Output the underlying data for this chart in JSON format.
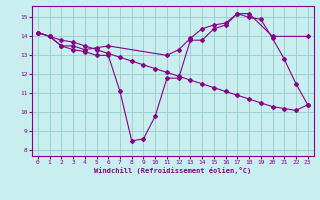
{
  "xlabel": "Windchill (Refroidissement éolien,°C)",
  "bg_color": "#c8eef0",
  "line_color": "#880088",
  "grid_color": "#99cccc",
  "xlim": [
    -0.5,
    23.5
  ],
  "ylim": [
    7.7,
    15.6
  ],
  "yticks": [
    8,
    9,
    10,
    11,
    12,
    13,
    14,
    15
  ],
  "xticks": [
    0,
    1,
    2,
    3,
    4,
    5,
    6,
    7,
    8,
    9,
    10,
    11,
    12,
    13,
    14,
    15,
    16,
    17,
    18,
    19,
    20,
    21,
    22,
    23
  ],
  "line1_x": [
    0,
    1,
    2,
    3,
    4,
    5,
    6,
    11,
    12,
    13,
    14,
    15,
    16,
    17,
    18,
    20,
    23
  ],
  "line1_y": [
    14.2,
    14.0,
    13.5,
    13.5,
    13.3,
    13.4,
    13.5,
    13.0,
    13.3,
    13.9,
    14.4,
    14.6,
    14.7,
    15.2,
    15.2,
    14.0,
    14.0
  ],
  "line2_x": [
    0,
    1,
    2,
    3,
    4,
    5,
    6,
    7,
    8,
    9,
    10,
    11,
    12,
    13,
    14,
    15,
    16,
    17,
    18,
    19,
    20,
    21,
    22,
    23
  ],
  "line2_y": [
    14.2,
    14.0,
    13.8,
    13.7,
    13.5,
    13.3,
    13.1,
    12.9,
    12.7,
    12.5,
    12.3,
    12.1,
    11.9,
    11.7,
    11.5,
    11.3,
    11.1,
    10.9,
    10.7,
    10.5,
    10.3,
    10.2,
    10.1,
    10.4
  ],
  "line3_x": [
    0,
    1,
    2,
    3,
    4,
    5,
    6,
    7,
    8,
    9,
    10,
    11,
    12,
    13,
    14,
    15,
    16,
    17,
    18,
    19,
    20,
    21,
    22,
    23
  ],
  "line3_y": [
    14.2,
    14.0,
    13.5,
    13.3,
    13.2,
    13.0,
    13.0,
    11.1,
    8.5,
    8.6,
    9.8,
    11.8,
    11.8,
    13.8,
    13.8,
    14.4,
    14.6,
    15.2,
    15.0,
    14.9,
    13.9,
    12.8,
    11.5,
    10.4
  ]
}
